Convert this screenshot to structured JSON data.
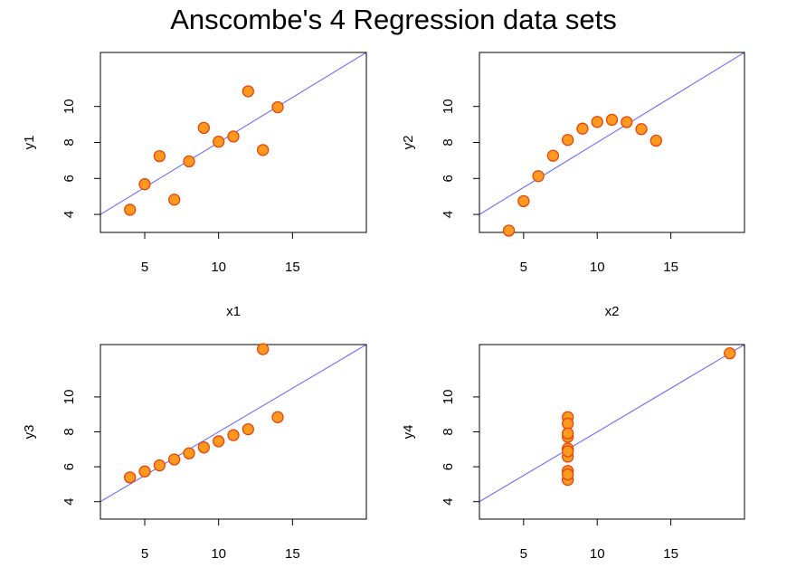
{
  "title": "Anscombe's 4 Regression data sets",
  "chart_data": [
    {
      "type": "scatter",
      "xlabel": "x1",
      "ylabel": "y1",
      "xlim": [
        2,
        20
      ],
      "ylim": [
        3,
        13
      ],
      "xticks": [
        5,
        10,
        15
      ],
      "yticks": [
        4,
        6,
        8,
        10
      ],
      "x": [
        10,
        8,
        13,
        9,
        11,
        14,
        6,
        4,
        12,
        7,
        5
      ],
      "y": [
        8.04,
        6.95,
        7.58,
        8.81,
        8.33,
        9.96,
        7.24,
        4.26,
        10.84,
        4.82,
        5.68
      ],
      "fit": {
        "intercept": 3.0,
        "slope": 0.5
      }
    },
    {
      "type": "scatter",
      "xlabel": "x2",
      "ylabel": "y2",
      "xlim": [
        2,
        20
      ],
      "ylim": [
        3,
        13
      ],
      "xticks": [
        5,
        10,
        15
      ],
      "yticks": [
        4,
        6,
        8,
        10
      ],
      "x": [
        10,
        8,
        13,
        9,
        11,
        14,
        6,
        4,
        12,
        7,
        5
      ],
      "y": [
        9.14,
        8.14,
        8.74,
        8.77,
        9.26,
        8.1,
        6.13,
        3.1,
        9.13,
        7.26,
        4.74
      ],
      "fit": {
        "intercept": 3.0,
        "slope": 0.5
      }
    },
    {
      "type": "scatter",
      "xlabel": "",
      "ylabel": "y3",
      "xlim": [
        2,
        20
      ],
      "ylim": [
        3,
        13
      ],
      "xticks": [
        5,
        10,
        15
      ],
      "yticks": [
        4,
        6,
        8,
        10
      ],
      "x": [
        10,
        8,
        13,
        9,
        11,
        14,
        6,
        4,
        12,
        7,
        5
      ],
      "y": [
        7.46,
        6.77,
        12.74,
        7.11,
        7.81,
        8.84,
        6.08,
        5.39,
        8.15,
        6.42,
        5.73
      ],
      "fit": {
        "intercept": 3.0,
        "slope": 0.5
      }
    },
    {
      "type": "scatter",
      "xlabel": "",
      "ylabel": "y4",
      "xlim": [
        2,
        20
      ],
      "ylim": [
        3,
        13
      ],
      "xticks": [
        5,
        10,
        15
      ],
      "yticks": [
        4,
        6,
        8,
        10
      ],
      "x": [
        8,
        8,
        8,
        8,
        8,
        8,
        8,
        19,
        8,
        8,
        8
      ],
      "y": [
        6.58,
        5.76,
        7.71,
        8.84,
        8.47,
        7.04,
        5.25,
        12.5,
        5.56,
        7.91,
        6.89
      ],
      "fit": {
        "intercept": 3.0,
        "slope": 0.5
      }
    }
  ],
  "colors": {
    "point_fill": "#ff9a1e",
    "point_stroke": "#e8420e",
    "regression_line": "#6b6bff"
  }
}
